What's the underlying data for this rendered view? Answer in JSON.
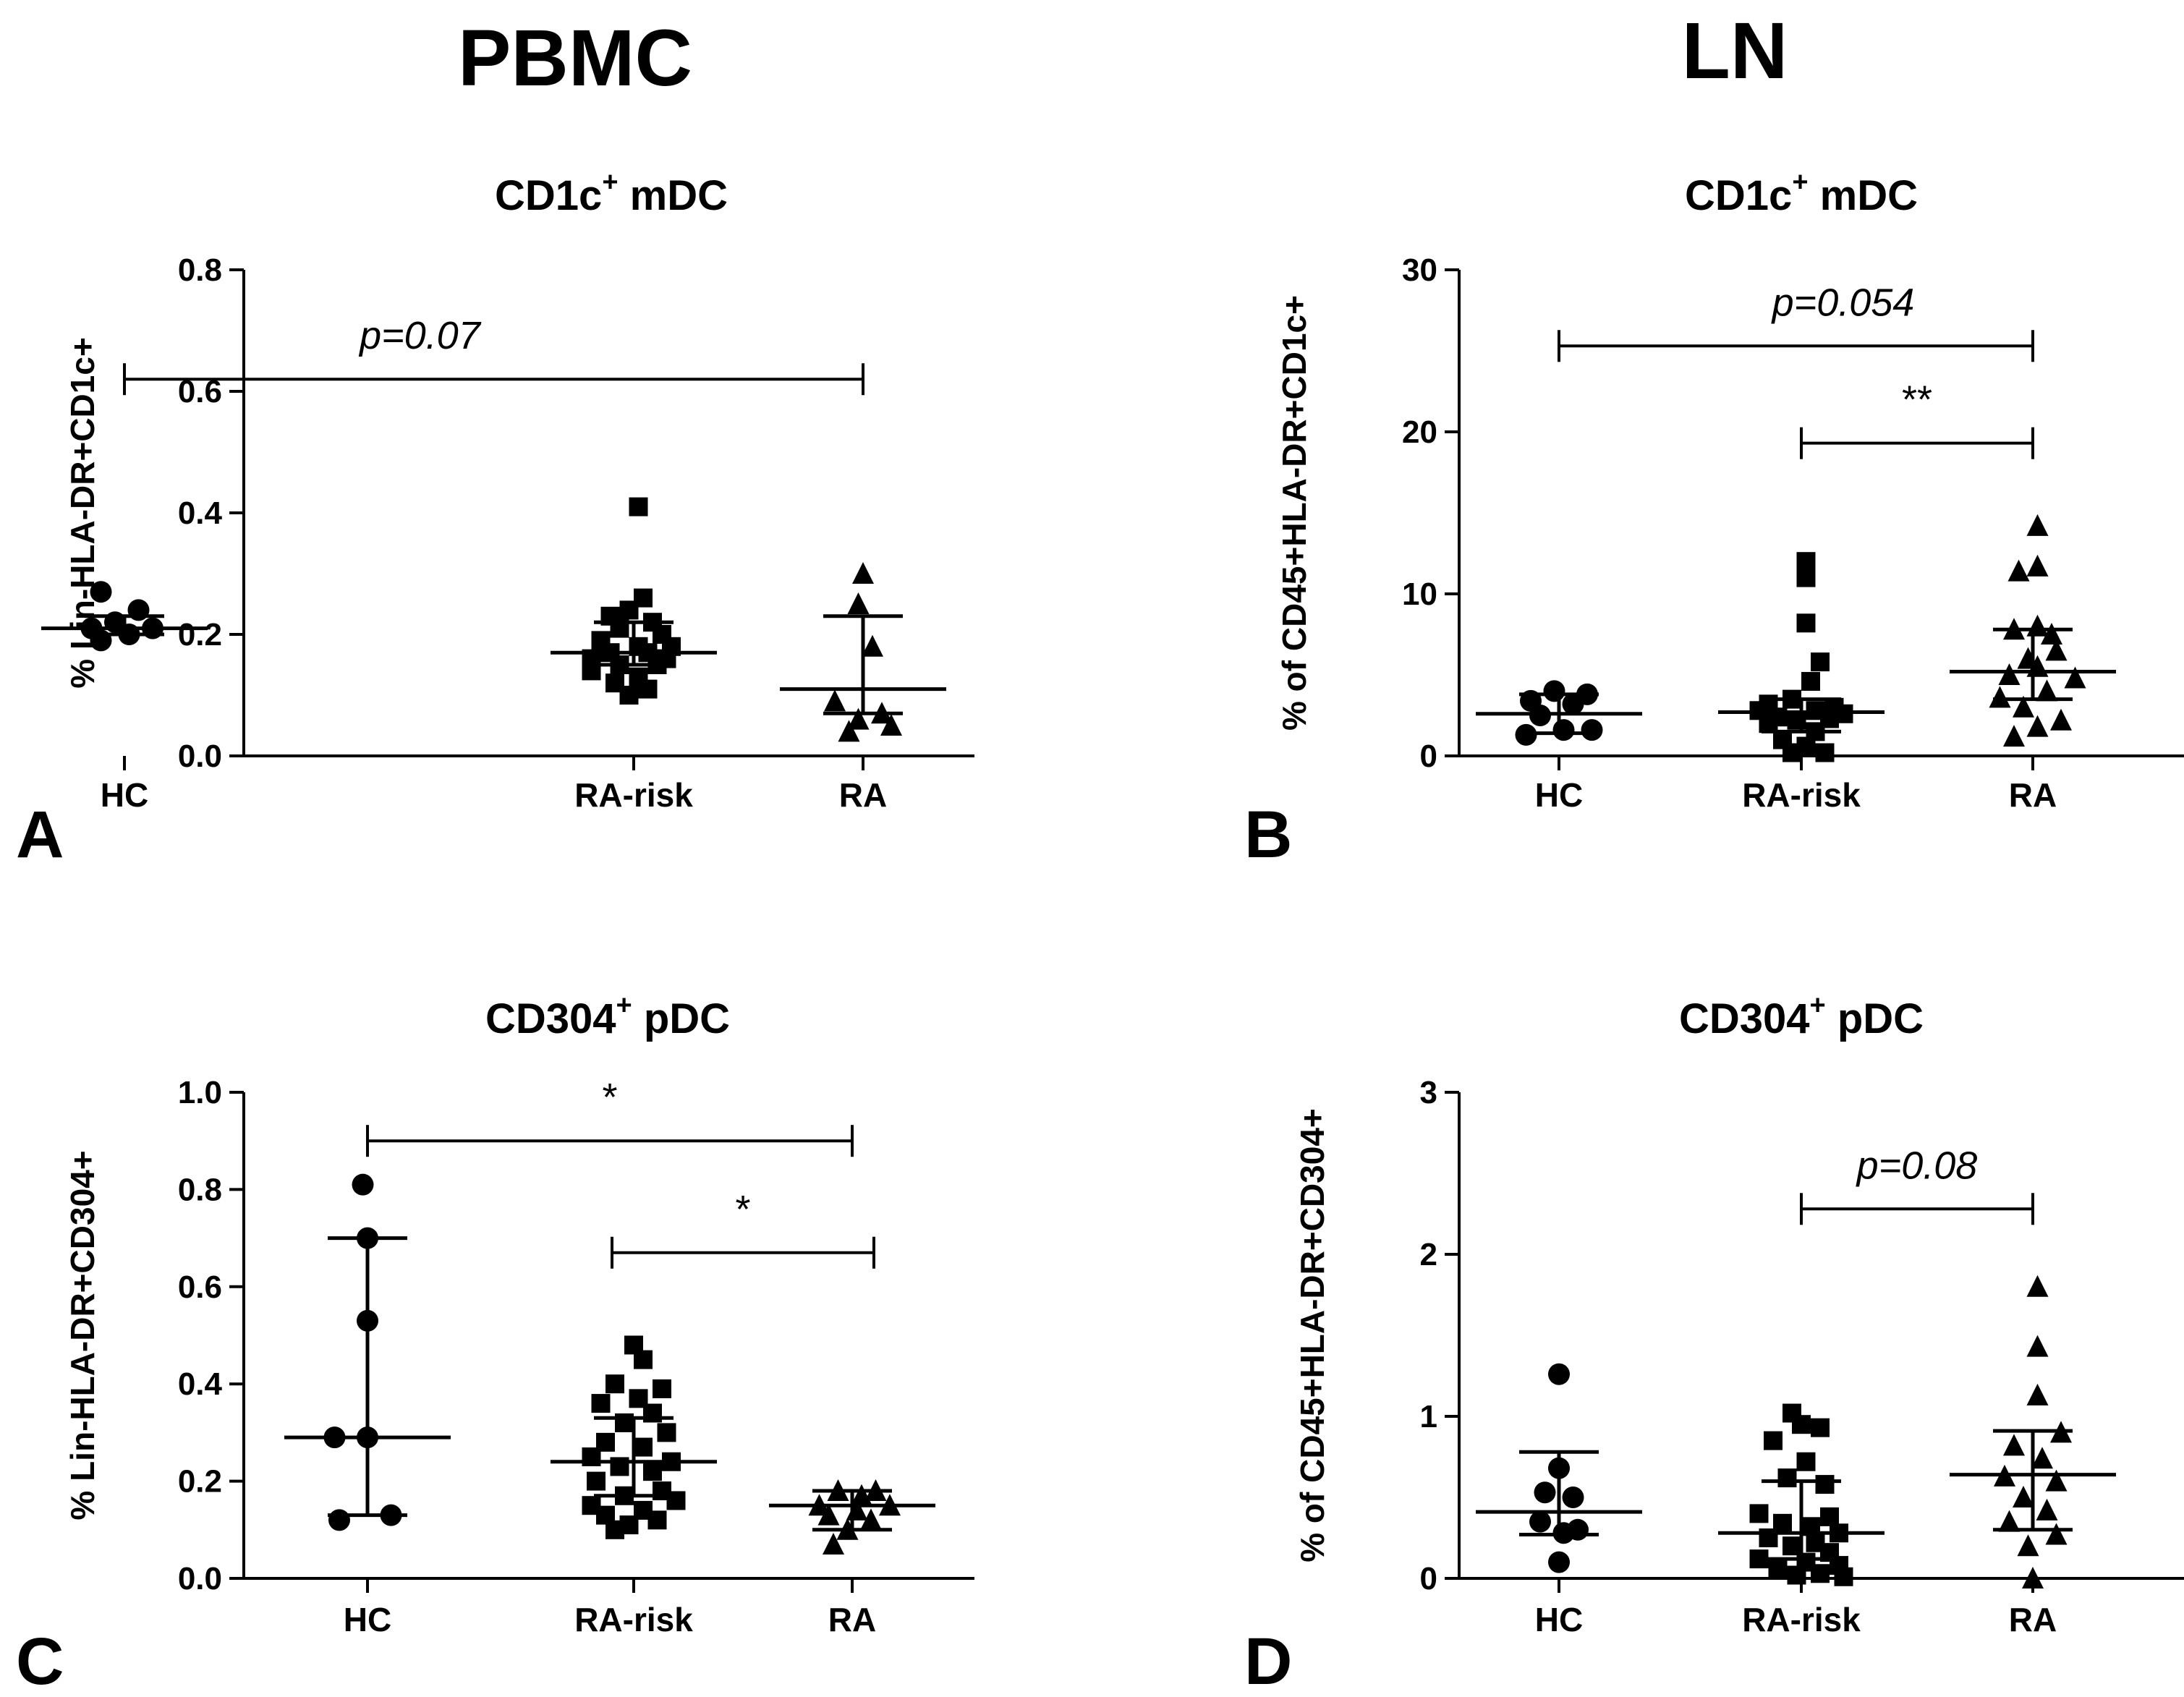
{
  "columns": {
    "left": "PBMC",
    "right": "LN"
  },
  "chart_data": [
    {
      "id": "A",
      "type": "scatter",
      "letter": "A",
      "title_main": "CD1c",
      "title_sup": "+",
      "title_rest": " mDC",
      "ylabel": "% Lin-HLA-DR+CD1c+",
      "ylim": [
        0,
        0.8
      ],
      "yticks": [
        0,
        0.2,
        0.4,
        0.6,
        0.8
      ],
      "ytick_labels": [
        "0.0",
        "0.2",
        "0.4",
        "0.6",
        "0.8"
      ],
      "categories": [
        "HC",
        "RA-risk",
        "RA"
      ],
      "groups": [
        {
          "name": "HC",
          "marker": "circle",
          "median": 0.21,
          "q1": 0.2,
          "q3": 0.23,
          "points": [
            [
              -0.25,
              0.27
            ],
            [
              0.15,
              0.24
            ],
            [
              -0.35,
              0.21
            ],
            [
              -0.1,
              0.22
            ],
            [
              0.3,
              0.21
            ],
            [
              0.05,
              0.2
            ],
            [
              -0.25,
              0.19
            ]
          ]
        },
        {
          "name": "RA-risk",
          "marker": "square",
          "median": 0.17,
          "q1": 0.15,
          "q3": 0.22,
          "points": [
            [
              0.05,
              0.41
            ],
            [
              0.1,
              0.26
            ],
            [
              -0.05,
              0.24
            ],
            [
              -0.25,
              0.23
            ],
            [
              0.2,
              0.22
            ],
            [
              -0.15,
              0.21
            ],
            [
              0.3,
              0.2
            ],
            [
              -0.35,
              0.19
            ],
            [
              0.05,
              0.18
            ],
            [
              0.4,
              0.18
            ],
            [
              -0.25,
              0.17
            ],
            [
              0.15,
              0.17
            ],
            [
              -0.45,
              0.16
            ],
            [
              0.35,
              0.16
            ],
            [
              -0.15,
              0.15
            ],
            [
              0.25,
              0.15
            ],
            [
              -0.45,
              0.14
            ],
            [
              0.05,
              0.13
            ],
            [
              -0.2,
              0.12
            ],
            [
              0.15,
              0.11
            ],
            [
              -0.05,
              0.1
            ]
          ]
        },
        {
          "name": "RA",
          "marker": "triangle",
          "median": 0.11,
          "q1": 0.07,
          "q3": 0.23,
          "points": [
            [
              0.0,
              0.3
            ],
            [
              -0.05,
              0.25
            ],
            [
              0.1,
              0.18
            ],
            [
              -0.3,
              0.09
            ],
            [
              0.2,
              0.07
            ],
            [
              -0.05,
              0.06
            ],
            [
              0.3,
              0.05
            ],
            [
              -0.15,
              0.04
            ]
          ]
        }
      ],
      "brackets": [
        {
          "from": 0,
          "to": 2,
          "y": 0.62,
          "label": "p=0.07",
          "italic": true,
          "label_pos": 0.4
        }
      ]
    },
    {
      "id": "B",
      "type": "scatter",
      "letter": "B",
      "title_main": "CD1c",
      "title_sup": "+",
      "title_rest": " mDC",
      "ylabel": "% of CD45+HLA-DR+CD1c+",
      "ylim": [
        0,
        30
      ],
      "yticks": [
        0,
        10,
        20,
        30
      ],
      "ytick_labels": [
        "0",
        "10",
        "20",
        "30"
      ],
      "categories": [
        "HC",
        "RA-risk",
        "RA"
      ],
      "groups": [
        {
          "name": "HC",
          "marker": "circle",
          "median": 2.6,
          "q1": 1.4,
          "q3": 3.8,
          "points": [
            [
              -0.05,
              4.0
            ],
            [
              0.3,
              3.8
            ],
            [
              -0.3,
              3.4
            ],
            [
              0.15,
              3.2
            ],
            [
              -0.2,
              2.5
            ],
            [
              0.05,
              1.6
            ],
            [
              -0.35,
              1.3
            ],
            [
              0.35,
              1.6
            ]
          ]
        },
        {
          "name": "RA-risk",
          "marker": "square",
          "median": 2.7,
          "q1": 1.5,
          "q3": 3.5,
          "points": [
            [
              0.05,
              12.0
            ],
            [
              0.05,
              11.0
            ],
            [
              0.05,
              8.2
            ],
            [
              0.2,
              5.8
            ],
            [
              0.1,
              4.6
            ],
            [
              -0.35,
              3.2
            ],
            [
              0.35,
              3.0
            ],
            [
              -0.1,
              3.5
            ],
            [
              -0.45,
              2.8
            ],
            [
              0.15,
              2.8
            ],
            [
              0.45,
              2.6
            ],
            [
              -0.25,
              2.4
            ],
            [
              0.3,
              2.3
            ],
            [
              -0.05,
              2.2
            ],
            [
              -0.35,
              2.0
            ],
            [
              0.15,
              1.5
            ],
            [
              -0.2,
              1.0
            ],
            [
              0.05,
              0.6
            ],
            [
              -0.1,
              0.2
            ],
            [
              0.25,
              0.2
            ]
          ]
        },
        {
          "name": "RA",
          "marker": "triangle",
          "median": 5.2,
          "q1": 3.5,
          "q3": 7.8,
          "points": [
            [
              0.05,
              14.2
            ],
            [
              -0.15,
              11.4
            ],
            [
              0.05,
              11.7
            ],
            [
              0.05,
              8.0
            ],
            [
              -0.2,
              7.8
            ],
            [
              0.2,
              7.5
            ],
            [
              -0.05,
              6.0
            ],
            [
              0.25,
              6.5
            ],
            [
              -0.25,
              5.0
            ],
            [
              0.45,
              4.8
            ],
            [
              0.05,
              5.5
            ],
            [
              -0.35,
              3.6
            ],
            [
              0.15,
              4.0
            ],
            [
              -0.1,
              3.0
            ],
            [
              0.3,
              2.2
            ],
            [
              0.05,
              1.8
            ],
            [
              -0.2,
              1.2
            ]
          ]
        }
      ],
      "brackets": [
        {
          "from": 0,
          "to": 2,
          "y": 25.3,
          "label": "p=0.054",
          "italic": true,
          "label_pos": 0.6
        },
        {
          "from": 1,
          "to": 2,
          "y": 19.3,
          "label": "**",
          "italic": false,
          "label_pos": 0.5
        }
      ]
    },
    {
      "id": "C",
      "type": "scatter",
      "letter": "C",
      "title_main": "CD304",
      "title_sup": "+",
      "title_rest": " pDC",
      "ylabel": "% Lin-HLA-DR+CD304+",
      "ylim": [
        0,
        1.0
      ],
      "yticks": [
        0,
        0.2,
        0.4,
        0.6,
        0.8,
        1.0
      ],
      "ytick_labels": [
        "0.0",
        "0.2",
        "0.4",
        "0.6",
        "0.8",
        "1.0"
      ],
      "categories": [
        "HC",
        "RA-risk",
        "RA"
      ],
      "groups": [
        {
          "name": "HC",
          "marker": "circle",
          "median": 0.29,
          "q1": 0.13,
          "q3": 0.7,
          "points": [
            [
              -0.05,
              0.81
            ],
            [
              0.0,
              0.7
            ],
            [
              0.0,
              0.53
            ],
            [
              -0.35,
              0.29
            ],
            [
              0.0,
              0.29
            ],
            [
              -0.3,
              0.12
            ],
            [
              0.25,
              0.13
            ]
          ]
        },
        {
          "name": "RA-risk",
          "marker": "square",
          "median": 0.24,
          "q1": 0.17,
          "q3": 0.33,
          "points": [
            [
              0.0,
              0.48
            ],
            [
              0.1,
              0.45
            ],
            [
              -0.2,
              0.4
            ],
            [
              0.3,
              0.39
            ],
            [
              0.05,
              0.37
            ],
            [
              -0.35,
              0.36
            ],
            [
              0.2,
              0.34
            ],
            [
              -0.1,
              0.32
            ],
            [
              0.35,
              0.3
            ],
            [
              -0.3,
              0.28
            ],
            [
              0.1,
              0.27
            ],
            [
              -0.45,
              0.25
            ],
            [
              0.4,
              0.24
            ],
            [
              -0.15,
              0.23
            ],
            [
              0.2,
              0.22
            ],
            [
              -0.4,
              0.2
            ],
            [
              0.3,
              0.18
            ],
            [
              -0.1,
              0.17
            ],
            [
              0.45,
              0.16
            ],
            [
              -0.45,
              0.15
            ],
            [
              0.1,
              0.14
            ],
            [
              -0.3,
              0.13
            ],
            [
              0.25,
              0.12
            ],
            [
              -0.05,
              0.11
            ],
            [
              -0.2,
              0.1
            ]
          ]
        },
        {
          "name": "RA",
          "marker": "triangle",
          "median": 0.15,
          "q1": 0.1,
          "q3": 0.18,
          "points": [
            [
              -0.15,
              0.18
            ],
            [
              0.25,
              0.18
            ],
            [
              0.1,
              0.17
            ],
            [
              -0.35,
              0.15
            ],
            [
              0.4,
              0.15
            ],
            [
              0.05,
              0.14
            ],
            [
              -0.25,
              0.13
            ],
            [
              0.2,
              0.12
            ],
            [
              -0.05,
              0.1
            ],
            [
              -0.2,
              0.07
            ]
          ]
        }
      ],
      "brackets": [
        {
          "from": 0,
          "to": 2,
          "y": 0.9,
          "label": "*",
          "italic": false,
          "label_pos": 0.5
        },
        {
          "from": 1,
          "to": 2,
          "y": 0.67,
          "label": "*",
          "italic": false,
          "label_pos": 0.5,
          "from_offset": -0.1,
          "to_offset": 0.1
        }
      ]
    },
    {
      "id": "D",
      "type": "scatter",
      "letter": "D",
      "title_main": "CD304",
      "title_sup": "+",
      "title_rest": " pDC",
      "ylabel": "% of CD45+HLA-DR+CD304+",
      "ylim": [
        0,
        3
      ],
      "yticks": [
        0,
        1,
        2,
        3
      ],
      "ytick_labels": [
        "0",
        "1",
        "2",
        "3"
      ],
      "categories": [
        "HC",
        "RA-risk",
        "RA"
      ],
      "groups": [
        {
          "name": "HC",
          "marker": "circle",
          "median": 0.41,
          "q1": 0.27,
          "q3": 0.78,
          "points": [
            [
              0.0,
              1.26
            ],
            [
              0.0,
              0.68
            ],
            [
              -0.15,
              0.53
            ],
            [
              0.15,
              0.5
            ],
            [
              -0.2,
              0.35
            ],
            [
              0.2,
              0.3
            ],
            [
              0.05,
              0.28
            ],
            [
              0.0,
              0.1
            ]
          ]
        },
        {
          "name": "RA-risk",
          "marker": "square",
          "median": 0.28,
          "q1": 0.12,
          "q3": 0.6,
          "points": [
            [
              -0.1,
              1.02
            ],
            [
              0.0,
              0.95
            ],
            [
              0.2,
              0.93
            ],
            [
              -0.3,
              0.85
            ],
            [
              0.05,
              0.72
            ],
            [
              -0.15,
              0.62
            ],
            [
              0.25,
              0.58
            ],
            [
              -0.45,
              0.4
            ],
            [
              0.3,
              0.38
            ],
            [
              -0.2,
              0.34
            ],
            [
              0.1,
              0.32
            ],
            [
              0.4,
              0.28
            ],
            [
              -0.35,
              0.25
            ],
            [
              0.15,
              0.22
            ],
            [
              -0.1,
              0.2
            ],
            [
              0.3,
              0.16
            ],
            [
              -0.45,
              0.12
            ],
            [
              0.05,
              0.1
            ],
            [
              0.4,
              0.08
            ],
            [
              -0.25,
              0.06
            ],
            [
              0.2,
              0.03
            ],
            [
              -0.05,
              0.02
            ],
            [
              0.45,
              0.01
            ]
          ]
        },
        {
          "name": "RA",
          "marker": "triangle",
          "median": 0.64,
          "q1": 0.3,
          "q3": 0.91,
          "points": [
            [
              0.05,
              1.8
            ],
            [
              0.05,
              1.43
            ],
            [
              0.05,
              1.13
            ],
            [
              0.3,
              0.9
            ],
            [
              -0.2,
              0.82
            ],
            [
              0.1,
              0.74
            ],
            [
              -0.3,
              0.63
            ],
            [
              0.25,
              0.6
            ],
            [
              -0.1,
              0.5
            ],
            [
              0.15,
              0.42
            ],
            [
              -0.25,
              0.35
            ],
            [
              0.25,
              0.27
            ],
            [
              -0.05,
              0.2
            ],
            [
              0.0,
              0.0
            ]
          ]
        }
      ],
      "brackets": [
        {
          "from": 1,
          "to": 2,
          "y": 2.28,
          "label": "p=0.08",
          "italic": true,
          "label_pos": 0.5
        }
      ]
    }
  ]
}
